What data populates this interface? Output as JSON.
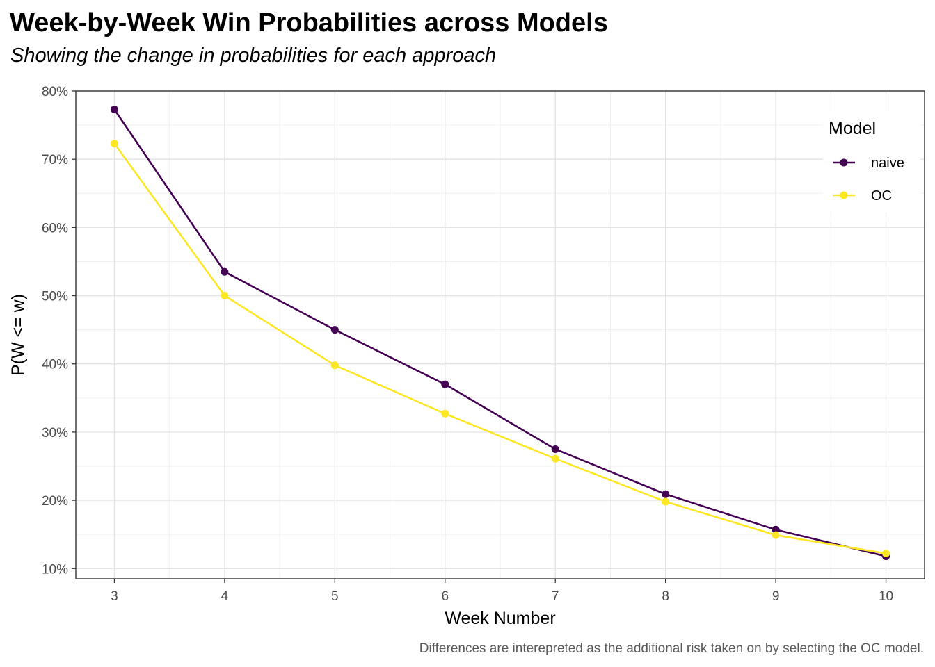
{
  "chart_data": {
    "type": "line",
    "title": "Week-by-Week Win Probabilities across Models",
    "subtitle": "Showing the change in probabilities for each approach",
    "caption": "Differences are interepreted as the additional risk taken on by selecting the OC model.",
    "xlabel": "Week Number",
    "ylabel": "P(W <= w)",
    "x": [
      3,
      4,
      5,
      6,
      7,
      8,
      9,
      10
    ],
    "xlim": [
      2.65,
      10.35
    ],
    "ylim": [
      0.085,
      0.8
    ],
    "y_ticks": [
      0.1,
      0.2,
      0.3,
      0.4,
      0.5,
      0.6,
      0.7,
      0.8
    ],
    "y_tick_labels": [
      "10%",
      "20%",
      "30%",
      "40%",
      "50%",
      "60%",
      "70%",
      "80%"
    ],
    "x_tick_labels": [
      "3",
      "4",
      "5",
      "6",
      "7",
      "8",
      "9",
      "10"
    ],
    "grid": true,
    "legend": {
      "title": "Model",
      "position": "top-right, inside"
    },
    "series": [
      {
        "name": "naive",
        "color": "#440154",
        "values": [
          0.773,
          0.535,
          0.45,
          0.37,
          0.275,
          0.209,
          0.157,
          0.118
        ]
      },
      {
        "name": "OC",
        "color": "#FDE725",
        "values": [
          0.723,
          0.5,
          0.398,
          0.327,
          0.261,
          0.198,
          0.149,
          0.122
        ]
      }
    ]
  }
}
